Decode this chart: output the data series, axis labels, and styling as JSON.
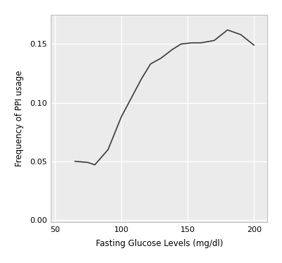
{
  "x": [
    65,
    75,
    80,
    90,
    100,
    108,
    115,
    122,
    130,
    138,
    145,
    153,
    160,
    170,
    180,
    190,
    200
  ],
  "y": [
    0.05,
    0.049,
    0.047,
    0.06,
    0.088,
    0.105,
    0.12,
    0.133,
    0.138,
    0.145,
    0.15,
    0.151,
    0.151,
    0.153,
    0.162,
    0.158,
    0.149
  ],
  "xlabel": "Fasting Glucose Levels (mg/dl)",
  "ylabel": "Frequency of PPI usage",
  "xlim": [
    47,
    210
  ],
  "ylim": [
    -0.002,
    0.175
  ],
  "xticks": [
    50,
    100,
    150,
    200
  ],
  "yticks": [
    0.0,
    0.05,
    0.1,
    0.15
  ],
  "line_color": "#3a3a3a",
  "line_width": 1.2,
  "background_color": "#ebebeb",
  "plot_bg_color": "#ebebeb",
  "outer_bg_color": "#ffffff",
  "grid_color": "#ffffff",
  "grid_linewidth": 1.0,
  "axis_label_fontsize": 8.5,
  "tick_fontsize": 8,
  "spine_color": "#b0b0b0"
}
